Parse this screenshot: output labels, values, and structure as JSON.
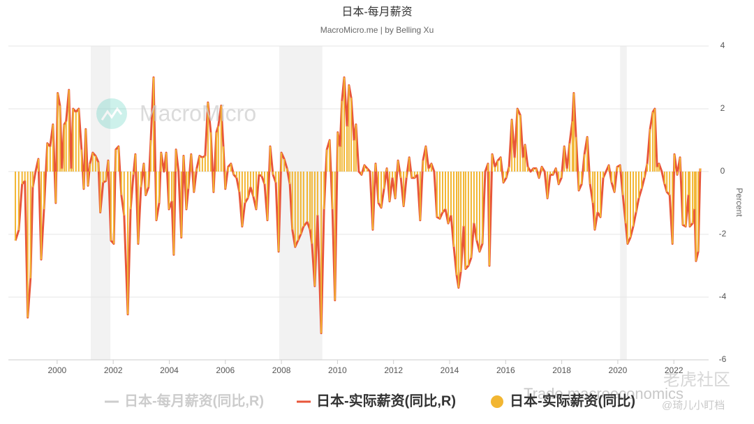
{
  "chart_data": {
    "type": "line",
    "title": "日本-每月薪资",
    "subtitle": "MacroMicro.me | by Belling Xu",
    "y_axis_label": "Percent",
    "watermark": "MacroMicro",
    "watermarks": [
      "Trade macroeconomics",
      "老虎社区",
      "@琦儿小盯档"
    ],
    "xlim": [
      1998.26,
      2023.24
    ],
    "xticks": [
      2000,
      2002,
      2004,
      2006,
      2008,
      2010,
      2012,
      2014,
      2016,
      2018,
      2020,
      2022
    ],
    "ylim": [
      -6,
      4
    ],
    "yticks": [
      -6,
      -4,
      -2,
      0,
      2,
      4
    ],
    "grid": true,
    "legend": "bottom",
    "recessions": [
      [
        2001.2,
        2001.9
      ],
      [
        2007.92,
        2009.46
      ],
      [
        2020.08,
        2020.32
      ]
    ],
    "x": [
      1998.51,
      1998.63,
      1998.75,
      1998.85,
      1998.95,
      1999.05,
      1999.13,
      1999.23,
      1999.33,
      1999.43,
      1999.53,
      1999.65,
      1999.75,
      1999.85,
      1999.95,
      2000.02,
      2000.1,
      2000.17,
      2000.25,
      2000.32,
      2000.42,
      2000.5,
      2000.57,
      2000.67,
      2000.77,
      2000.87,
      2000.95,
      2001.02,
      2001.1,
      2001.17,
      2001.27,
      2001.37,
      2001.47,
      2001.54,
      2001.64,
      2001.74,
      2001.82,
      2001.92,
      2002.02,
      2002.09,
      2002.19,
      2002.29,
      2002.39,
      2002.52,
      2002.62,
      2002.72,
      2002.79,
      2002.89,
      2002.99,
      2003.09,
      2003.16,
      2003.26,
      2003.34,
      2003.44,
      2003.54,
      2003.64,
      2003.71,
      2003.81,
      2003.89,
      2003.99,
      2004.09,
      2004.16,
      2004.24,
      2004.33,
      2004.43,
      2004.51,
      2004.61,
      2004.68,
      2004.78,
      2004.88,
      2004.98,
      2005.08,
      2005.18,
      2005.28,
      2005.38,
      2005.48,
      2005.58,
      2005.68,
      2005.75,
      2005.85,
      2005.93,
      2006.0,
      2006.1,
      2006.2,
      2006.3,
      2006.4,
      2006.5,
      2006.6,
      2006.7,
      2006.8,
      2006.9,
      2007.0,
      2007.1,
      2007.2,
      2007.3,
      2007.4,
      2007.5,
      2007.6,
      2007.7,
      2007.8,
      2007.9,
      2008.0,
      2008.1,
      2008.2,
      2008.3,
      2008.39,
      2008.49,
      2008.59,
      2008.69,
      2008.79,
      2008.92,
      2009.02,
      2009.09,
      2009.19,
      2009.29,
      2009.42,
      2009.52,
      2009.62,
      2009.72,
      2009.82,
      2009.91,
      2010.01,
      2010.09,
      2010.16,
      2010.24,
      2010.34,
      2010.41,
      2010.49,
      2010.59,
      2010.66,
      2010.76,
      2010.86,
      2010.96,
      2011.06,
      2011.16,
      2011.26,
      2011.36,
      2011.46,
      2011.56,
      2011.66,
      2011.76,
      2011.86,
      2011.96,
      2012.06,
      2012.16,
      2012.26,
      2012.36,
      2012.46,
      2012.56,
      2012.65,
      2012.75,
      2012.85,
      2012.95,
      2013.05,
      2013.15,
      2013.25,
      2013.35,
      2013.45,
      2013.55,
      2013.65,
      2013.75,
      2013.85,
      2013.95,
      2014.05,
      2014.15,
      2014.25,
      2014.32,
      2014.4,
      2014.5,
      2014.57,
      2014.67,
      2014.77,
      2014.87,
      2014.97,
      2015.07,
      2015.17,
      2015.27,
      2015.37,
      2015.42,
      2015.52,
      2015.62,
      2015.72,
      2015.82,
      2015.92,
      2016.02,
      2016.12,
      2016.22,
      2016.32,
      2016.42,
      2016.52,
      2016.62,
      2016.69,
      2016.79,
      2016.89,
      2016.99,
      2017.09,
      2017.19,
      2017.29,
      2017.39,
      2017.49,
      2017.59,
      2017.69,
      2017.79,
      2017.89,
      2017.99,
      2018.09,
      2018.19,
      2018.28,
      2018.38,
      2018.43,
      2018.51,
      2018.61,
      2018.71,
      2018.81,
      2018.91,
      2019.01,
      2019.11,
      2019.18,
      2019.28,
      2019.38,
      2019.48,
      2019.58,
      2019.68,
      2019.78,
      2019.88,
      2019.98,
      2020.08,
      2020.18,
      2020.28,
      2020.35,
      2020.45,
      2020.55,
      2020.65,
      2020.75,
      2020.85,
      2020.95,
      2021.05,
      2021.15,
      2021.25,
      2021.32,
      2021.4,
      2021.47,
      2021.57,
      2021.67,
      2021.75,
      2021.85,
      2021.95,
      2022.02,
      2022.12,
      2022.22,
      2022.32,
      2022.42,
      2022.52,
      2022.57,
      2022.67,
      2022.74,
      2022.79,
      2022.87,
      2022.94
    ],
    "series": [
      {
        "name": "日本-每月薪资(同比,R)",
        "color": "#cccccc",
        "hidden": true
      },
      {
        "name": "日本-实际薪资(同比,R)",
        "color": "#e8563a",
        "type": "line",
        "values": [
          -2.2,
          -1.87,
          -0.4,
          -0.3,
          -4.65,
          -3.4,
          -0.5,
          0,
          0.4,
          -2.8,
          -1.2,
          0.9,
          0.8,
          1.5,
          -1.0,
          2.5,
          2.1,
          0.1,
          1.5,
          1.6,
          2.6,
          0.1,
          2.0,
          1.9,
          2.0,
          0.7,
          -0.55,
          1.35,
          -0.45,
          0.25,
          0.6,
          0.5,
          0.3,
          -1.3,
          -0.35,
          -0.3,
          0.35,
          -2.2,
          -2.3,
          0.7,
          0.8,
          -0.75,
          -1.4,
          -4.55,
          -1.2,
          -0.1,
          0.55,
          -2.3,
          -0.5,
          0.25,
          -0.75,
          -0.5,
          1.0,
          3.0,
          -1.55,
          -1.0,
          0.6,
          0,
          0.6,
          -1.2,
          -0.95,
          -2.65,
          0.7,
          0,
          -2.1,
          0.5,
          -1.2,
          -0.55,
          0.55,
          -0.65,
          0.1,
          0.5,
          0.45,
          0.5,
          2.2,
          1.25,
          -0.65,
          1.25,
          1.45,
          2.1,
          0.8,
          -0.55,
          0.15,
          0.25,
          -0.1,
          -0.2,
          -0.65,
          -1.75,
          -1.0,
          -0.85,
          -0.5,
          -0.8,
          -1.2,
          -0.1,
          -0.15,
          -0.4,
          -1.55,
          0.8,
          -0.1,
          -0.35,
          -2.55,
          0.6,
          0.4,
          0.1,
          -0.4,
          -1.85,
          -2.4,
          -2.2,
          -2.0,
          -1.75,
          -1.6,
          -1.85,
          -2.3,
          -3.65,
          -1.4,
          -5.15,
          -1.2,
          0.7,
          1.0,
          -1.2,
          -4.1,
          1.25,
          0.8,
          2.25,
          3.0,
          1.45,
          2.75,
          2.35,
          1.0,
          1.5,
          0,
          -0.1,
          0.2,
          0.1,
          0,
          -1.85,
          0.25,
          -1.0,
          -1.15,
          -0.55,
          0.1,
          -0.95,
          -0.2,
          -0.85,
          0.35,
          -0.2,
          -1.1,
          -0.2,
          0.45,
          -0.2,
          -0.2,
          -0.1,
          -1.55,
          0.35,
          0.8,
          0.1,
          0.25,
          0,
          -1.45,
          -1.5,
          -1.3,
          -1.2,
          -1.65,
          -1.4,
          -2.4,
          -3.3,
          -3.7,
          -3.2,
          -1.75,
          -3.1,
          -3.0,
          -2.75,
          -1.65,
          -2.2,
          -2.55,
          -2.3,
          0,
          0.25,
          -3.0,
          0.55,
          0.15,
          0.35,
          0.45,
          -0.35,
          -0.2,
          0.15,
          1.65,
          0.45,
          2.0,
          1.8,
          0.45,
          0.85,
          0.15,
          0,
          0.1,
          0.1,
          -0.2,
          0.15,
          0,
          -0.85,
          -0.1,
          -0.1,
          0.1,
          -0.4,
          -0.2,
          0.8,
          0.1,
          0.9,
          1.6,
          2.5,
          1.1,
          -0.6,
          -0.4,
          0.55,
          1.1,
          -0.4,
          -1.0,
          -1.85,
          -1.3,
          -1.45,
          -0.2,
          0,
          0.2,
          -0.35,
          -0.65,
          0.15,
          0.2,
          -0.75,
          -1.65,
          -2.3,
          -2.1,
          -1.75,
          -1.3,
          -0.85,
          -0.55,
          -0.2,
          0.25,
          1.35,
          1.9,
          2.0,
          0.15,
          0.25,
          0,
          -0.4,
          -0.65,
          -0.75,
          -2.3,
          0.55,
          -0.1,
          0.45,
          -1.7,
          -1.75,
          -0.75,
          -1.75,
          -1.65,
          -1.2,
          -2.85,
          -2.55,
          0.1
        ]
      },
      {
        "name": "日本-实际薪资(同比)",
        "color": "#f2b632",
        "type": "bar",
        "values": [
          -2.2,
          -1.87,
          -0.4,
          -0.3,
          -4.65,
          -3.4,
          -0.5,
          0,
          0.4,
          -2.8,
          -1.2,
          0.9,
          0.8,
          1.5,
          -1.0,
          2.5,
          2.1,
          0.1,
          1.5,
          1.6,
          2.6,
          0.1,
          2.0,
          1.9,
          2.0,
          0.7,
          -0.55,
          1.35,
          -0.45,
          0.25,
          0.6,
          0.5,
          0.3,
          -1.3,
          -0.35,
          -0.3,
          0.35,
          -2.2,
          -2.3,
          0.7,
          0.8,
          -0.75,
          -1.4,
          -4.55,
          -1.2,
          -0.1,
          0.55,
          -2.3,
          -0.5,
          0.25,
          -0.75,
          -0.5,
          1.0,
          3.0,
          -1.55,
          -1.0,
          0.6,
          0,
          0.6,
          -1.2,
          -0.95,
          -2.65,
          0.7,
          0,
          -2.1,
          0.5,
          -1.2,
          -0.55,
          0.55,
          -0.65,
          0.1,
          0.5,
          0.45,
          0.5,
          2.2,
          1.25,
          -0.65,
          1.25,
          1.45,
          2.1,
          0.8,
          -0.55,
          0.15,
          0.25,
          -0.1,
          -0.2,
          -0.65,
          -1.75,
          -1.0,
          -0.85,
          -0.5,
          -0.8,
          -1.2,
          -0.1,
          -0.15,
          -0.4,
          -1.55,
          0.8,
          -0.1,
          -0.35,
          -2.55,
          0.6,
          0.4,
          0.1,
          -0.4,
          -1.85,
          -2.4,
          -2.2,
          -2.0,
          -1.75,
          -1.6,
          -1.85,
          -2.3,
          -3.65,
          -1.4,
          -5.15,
          -1.2,
          0.7,
          1.0,
          -1.2,
          -4.1,
          1.25,
          0.8,
          2.25,
          3.0,
          1.45,
          2.75,
          2.35,
          1.0,
          1.5,
          0,
          -0.1,
          0.2,
          0.1,
          0,
          -1.85,
          0.25,
          -1.0,
          -1.15,
          -0.55,
          0.1,
          -0.95,
          -0.2,
          -0.85,
          0.35,
          -0.2,
          -1.1,
          -0.2,
          0.45,
          -0.2,
          -0.2,
          -0.1,
          -1.55,
          0.35,
          0.8,
          0.1,
          0.25,
          0,
          -1.45,
          -1.5,
          -1.3,
          -1.2,
          -1.65,
          -1.4,
          -2.4,
          -3.3,
          -3.7,
          -3.2,
          -1.75,
          -3.1,
          -3.0,
          -2.75,
          -1.65,
          -2.2,
          -2.55,
          -2.3,
          0,
          0.25,
          -3.0,
          0.55,
          0.15,
          0.35,
          0.45,
          -0.35,
          -0.2,
          0.15,
          1.65,
          0.45,
          2.0,
          1.8,
          0.45,
          0.85,
          0.15,
          0,
          0.1,
          0.1,
          -0.2,
          0.15,
          0,
          -0.85,
          -0.1,
          -0.1,
          0.1,
          -0.4,
          -0.2,
          0.8,
          0.1,
          0.9,
          1.6,
          2.5,
          1.1,
          -0.6,
          -0.4,
          0.55,
          1.1,
          -0.4,
          -1.0,
          -1.85,
          -1.3,
          -1.45,
          -0.2,
          0,
          0.2,
          -0.35,
          -0.65,
          0.15,
          0.2,
          -0.75,
          -1.65,
          -2.3,
          -2.1,
          -1.75,
          -1.3,
          -0.85,
          -0.55,
          -0.2,
          0.25,
          1.35,
          1.9,
          2.0,
          0.15,
          0.25,
          0,
          -0.4,
          -0.65,
          -0.75,
          -2.3,
          0.55,
          -0.1,
          0.45,
          -1.7,
          -1.75,
          -0.75,
          -1.75,
          -1.65,
          -1.2,
          -2.85,
          -2.55,
          0.1
        ]
      }
    ]
  }
}
